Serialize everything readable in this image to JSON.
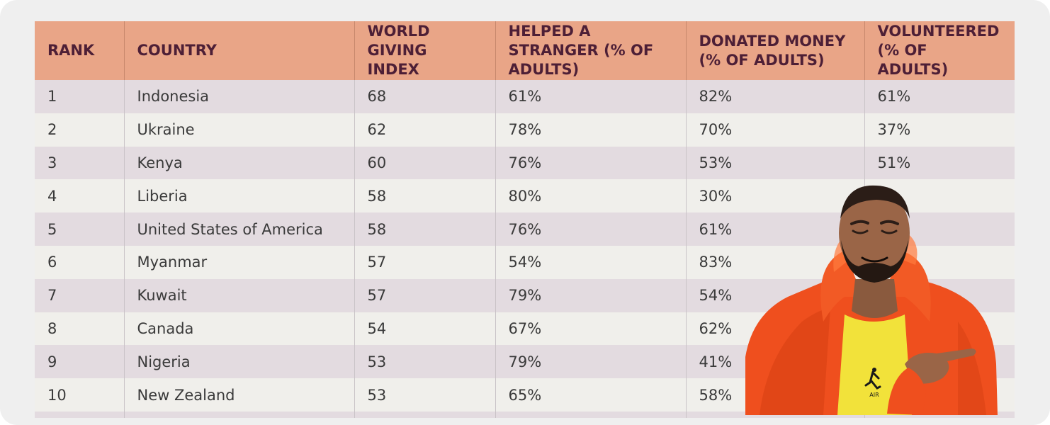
{
  "table": {
    "headers": [
      "RANK",
      "COUNTRY",
      "WORLD GIVING INDEX",
      "HELPED A STRANGER (% OF ADULTS)",
      "DONATED MONEY (% OF ADULTS)",
      "VOLUNTEERED (% OF ADULTS)"
    ],
    "rows": [
      [
        "1",
        "Indonesia",
        "68",
        "61%",
        "82%",
        "61%"
      ],
      [
        "2",
        "Ukraine",
        "62",
        "78%",
        "70%",
        "37%"
      ],
      [
        "3",
        "Kenya",
        "60",
        "76%",
        "53%",
        "51%"
      ],
      [
        "4",
        "Liberia",
        "58",
        "80%",
        "30%",
        ""
      ],
      [
        "5",
        "United States of America",
        "58",
        "76%",
        "61%",
        ""
      ],
      [
        "6",
        "Myanmar",
        "57",
        "54%",
        "83%",
        ""
      ],
      [
        "7",
        "Kuwait",
        "57",
        "79%",
        "54%",
        ""
      ],
      [
        "8",
        "Canada",
        "54",
        "67%",
        "62%",
        ""
      ],
      [
        "9",
        "Nigeria",
        "53",
        "79%",
        "41%",
        ""
      ],
      [
        "10",
        "New Zealand",
        "53",
        "65%",
        "58%",
        ""
      ]
    ]
  },
  "overlay": {
    "shirt_logo": "AIR"
  },
  "colors": {
    "header_bg": "#e9a587",
    "header_text": "#4d1f36",
    "row_odd": "#e3dbe0",
    "row_even": "#f0efeb",
    "jacket": "#f0511c"
  }
}
